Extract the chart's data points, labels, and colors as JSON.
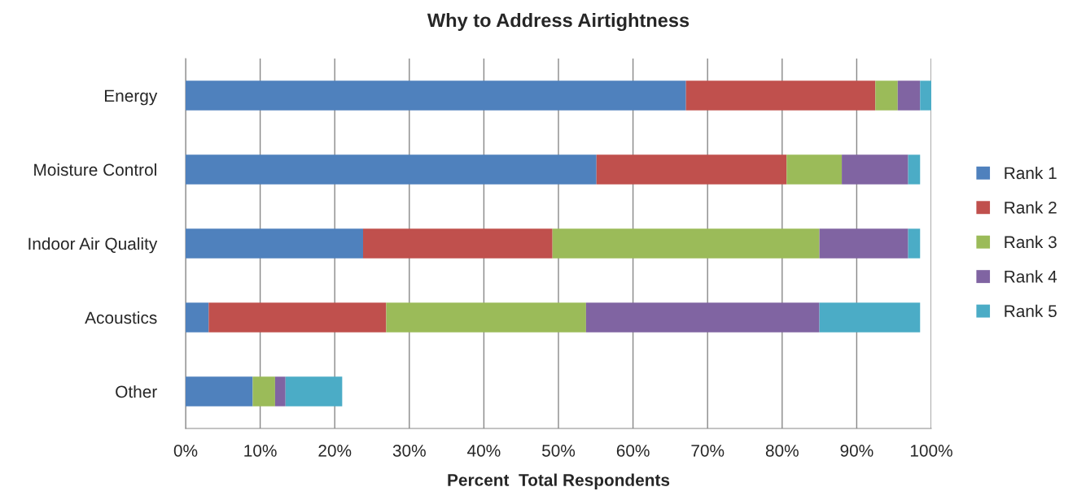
{
  "chart_data": {
    "type": "bar",
    "orientation": "horizontal",
    "stacked": true,
    "title": "Why to Address Airtightness",
    "xlabel": "Percent  Total Respondents",
    "categories": [
      "Energy",
      "Moisture Control",
      "Indoor Air Quality",
      "Acoustics",
      "Other"
    ],
    "series": [
      {
        "name": "Rank 1",
        "color": "#4f81bd",
        "values": [
          67.1,
          55.1,
          23.8,
          3.1,
          9.0
        ]
      },
      {
        "name": "Rank 2",
        "color": "#c0504d",
        "values": [
          25.4,
          25.5,
          25.4,
          23.8,
          null
        ]
      },
      {
        "name": "Rank 3",
        "color": "#9bbb59",
        "values": [
          3.0,
          7.4,
          35.8,
          26.8,
          3.0
        ]
      },
      {
        "name": "Rank 4",
        "color": "#8064a2",
        "values": [
          3.0,
          8.9,
          11.9,
          31.3,
          1.4
        ]
      },
      {
        "name": "Rank 5",
        "color": "#4bacc6",
        "values": [
          1.5,
          1.6,
          1.6,
          13.5,
          7.6
        ]
      }
    ],
    "xlim": [
      0,
      100
    ],
    "xticks": [
      {
        "value": 0,
        "label": "0%"
      },
      {
        "value": 10,
        "label": "10%"
      },
      {
        "value": 20,
        "label": "20%"
      },
      {
        "value": 30,
        "label": "30%"
      },
      {
        "value": 40,
        "label": "40%"
      },
      {
        "value": 50,
        "label": "50%"
      },
      {
        "value": 60,
        "label": "60%"
      },
      {
        "value": 70,
        "label": "70%"
      },
      {
        "value": 80,
        "label": "80%"
      },
      {
        "value": 90,
        "label": "90%"
      },
      {
        "value": 100,
        "label": "100%"
      }
    ],
    "grid": "x",
    "legend": "right"
  }
}
